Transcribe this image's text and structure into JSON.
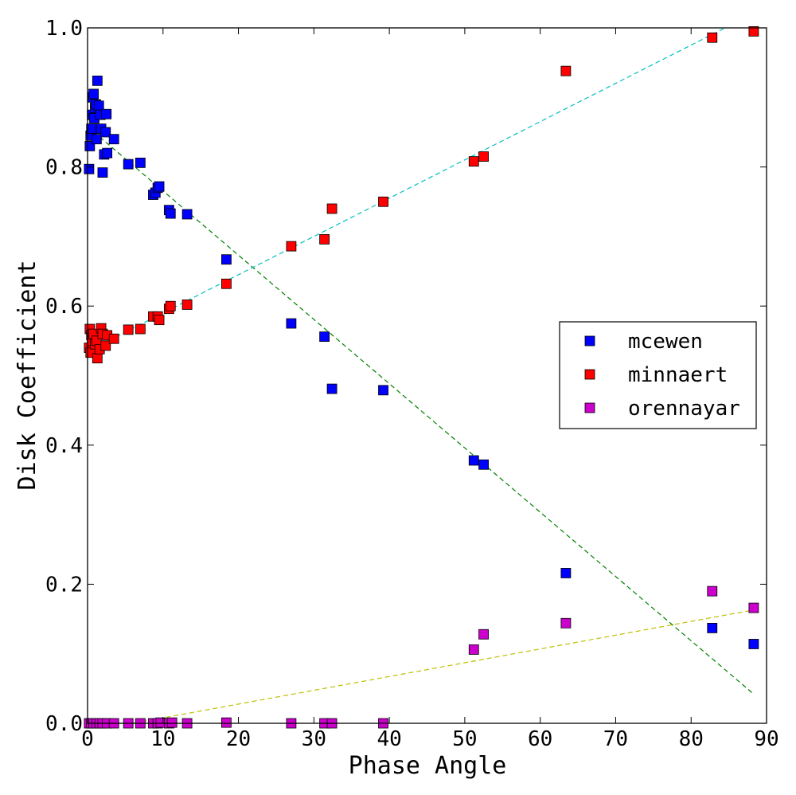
{
  "chart_data": {
    "type": "scatter",
    "title": "",
    "xlabel": "Phase Angle",
    "ylabel": "Disk Coefficient",
    "xlim": [
      0,
      90
    ],
    "ylim": [
      0,
      1.0
    ],
    "xticks": [
      "0",
      "10",
      "20",
      "30",
      "40",
      "50",
      "60",
      "70",
      "80",
      "90"
    ],
    "yticks": [
      "0.0",
      "0.2",
      "0.4",
      "0.6",
      "0.8",
      "1.0"
    ],
    "legend_position": "center-right",
    "series": [
      {
        "name": "mcewen",
        "color": "#0000ff",
        "points": [
          [
            0.2,
            0.797
          ],
          [
            0.3,
            0.83
          ],
          [
            0.4,
            0.845
          ],
          [
            0.5,
            0.855
          ],
          [
            0.6,
            0.875
          ],
          [
            0.7,
            0.9
          ],
          [
            0.8,
            0.905
          ],
          [
            0.9,
            0.87
          ],
          [
            1.0,
            0.885
          ],
          [
            1.1,
            0.89
          ],
          [
            1.2,
            0.84
          ],
          [
            1.3,
            0.924
          ],
          [
            1.5,
            0.888
          ],
          [
            1.7,
            0.875
          ],
          [
            1.8,
            0.855
          ],
          [
            2.0,
            0.792
          ],
          [
            2.2,
            0.818
          ],
          [
            2.4,
            0.85
          ],
          [
            2.5,
            0.876
          ],
          [
            2.6,
            0.82
          ],
          [
            3.5,
            0.84
          ],
          [
            5.4,
            0.804
          ],
          [
            7.0,
            0.806
          ],
          [
            8.7,
            0.76
          ],
          [
            9.0,
            0.763
          ],
          [
            9.3,
            0.77
          ],
          [
            9.5,
            0.772
          ],
          [
            10.8,
            0.738
          ],
          [
            11.0,
            0.733
          ],
          [
            13.2,
            0.732
          ],
          [
            18.4,
            0.667
          ],
          [
            27.0,
            0.575
          ],
          [
            31.4,
            0.556
          ],
          [
            32.4,
            0.481
          ],
          [
            39.2,
            0.479
          ],
          [
            51.2,
            0.378
          ],
          [
            52.5,
            0.372
          ],
          [
            63.4,
            0.216
          ],
          [
            82.8,
            0.137
          ],
          [
            88.3,
            0.114
          ]
        ]
      },
      {
        "name": "minnaert",
        "color": "#ff0000",
        "points": [
          [
            0.2,
            0.54
          ],
          [
            0.3,
            0.567
          ],
          [
            0.4,
            0.533
          ],
          [
            0.5,
            0.558
          ],
          [
            0.6,
            0.55
          ],
          [
            0.8,
            0.56
          ],
          [
            1.0,
            0.545
          ],
          [
            1.2,
            0.55
          ],
          [
            1.3,
            0.525
          ],
          [
            1.6,
            0.538
          ],
          [
            1.8,
            0.568
          ],
          [
            2.0,
            0.56
          ],
          [
            2.4,
            0.543
          ],
          [
            2.6,
            0.558
          ],
          [
            3.5,
            0.553
          ],
          [
            5.4,
            0.566
          ],
          [
            7.0,
            0.567
          ],
          [
            8.7,
            0.585
          ],
          [
            9.3,
            0.585
          ],
          [
            9.5,
            0.58
          ],
          [
            10.8,
            0.596
          ],
          [
            11.0,
            0.6
          ],
          [
            13.2,
            0.602
          ],
          [
            18.4,
            0.632
          ],
          [
            27.0,
            0.686
          ],
          [
            31.4,
            0.696
          ],
          [
            32.4,
            0.74
          ],
          [
            39.2,
            0.75
          ],
          [
            51.2,
            0.808
          ],
          [
            52.5,
            0.815
          ],
          [
            63.4,
            0.938
          ],
          [
            82.8,
            0.986
          ],
          [
            88.3,
            0.995
          ]
        ]
      },
      {
        "name": "orennayar",
        "color": "#cc00cc",
        "points": [
          [
            0.2,
            0.0
          ],
          [
            0.5,
            0.0
          ],
          [
            0.8,
            0.0
          ],
          [
            1.2,
            0.0
          ],
          [
            1.6,
            0.0
          ],
          [
            2.0,
            0.0
          ],
          [
            2.6,
            0.0
          ],
          [
            3.5,
            0.0
          ],
          [
            5.4,
            0.0
          ],
          [
            7.0,
            0.0
          ],
          [
            8.7,
            0.0
          ],
          [
            9.3,
            0.0
          ],
          [
            9.7,
            0.001
          ],
          [
            10.8,
            0.0
          ],
          [
            11.2,
            0.001
          ],
          [
            13.2,
            0.0
          ],
          [
            18.4,
            0.001
          ],
          [
            27.0,
            0.0
          ],
          [
            31.4,
            0.0
          ],
          [
            32.4,
            0.0
          ],
          [
            39.2,
            0.0
          ],
          [
            51.2,
            0.106
          ],
          [
            52.5,
            0.128
          ],
          [
            63.4,
            0.144
          ],
          [
            82.8,
            0.19
          ],
          [
            88.3,
            0.166
          ]
        ]
      }
    ],
    "fit_lines": [
      {
        "series": "mcewen",
        "color": "#008000",
        "x": [
          0,
          88.3
        ],
        "y": [
          0.858,
          0.042
        ]
      },
      {
        "series": "minnaert",
        "color": "#00bfbf",
        "x": [
          0,
          84.5
        ],
        "y": [
          0.535,
          1.0
        ]
      },
      {
        "series": "orennayar",
        "color": "#bfbf00",
        "x": [
          0,
          88.3
        ],
        "y": [
          -0.012,
          0.163
        ]
      }
    ]
  }
}
